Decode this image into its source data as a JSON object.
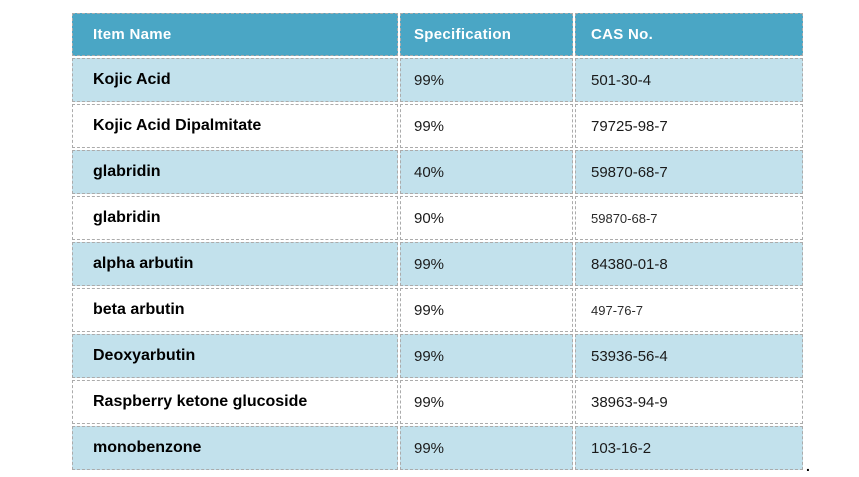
{
  "page": {
    "background": "#ffffff",
    "trailing_period": "."
  },
  "table": {
    "header_bg": "#4aa6c5",
    "header_text_color": "#ffffff",
    "row_bg": "#ffffff",
    "row_alt_bg": "#c2e1ec",
    "border_color": "#ababab",
    "columns": [
      {
        "key": "item_name",
        "label": "Item Name"
      },
      {
        "key": "specification",
        "label": "Specification"
      },
      {
        "key": "cas_no",
        "label": "CAS No."
      }
    ],
    "rows": [
      {
        "item_name": "Kojic Acid",
        "specification": "99%",
        "cas_no": "501-30-4",
        "cas_small": false
      },
      {
        "item_name": "Kojic Acid Dipalmitate",
        "specification": "99%",
        "cas_no": "79725-98-7",
        "cas_small": false
      },
      {
        "item_name": "glabridin",
        "specification": "40%",
        "cas_no": "59870-68-7",
        "cas_small": false
      },
      {
        "item_name": "glabridin",
        "specification": "90%",
        "cas_no": "59870-68-7",
        "cas_small": true
      },
      {
        "item_name": "alpha arbutin",
        "specification": "99%",
        "cas_no": "84380-01-8",
        "cas_small": false
      },
      {
        "item_name": "beta arbutin",
        "specification": "99%",
        "cas_no": "497-76-7",
        "cas_small": true
      },
      {
        "item_name": "Deoxyarbutin",
        "specification": "99%",
        "cas_no": "53936-56-4",
        "cas_small": false
      },
      {
        "item_name": "Raspberry ketone glucoside",
        "specification": "99%",
        "cas_no": "38963-94-9",
        "cas_small": false
      },
      {
        "item_name": "monobenzone",
        "specification": "99%",
        "cas_no": "103-16-2",
        "cas_small": false
      }
    ]
  }
}
